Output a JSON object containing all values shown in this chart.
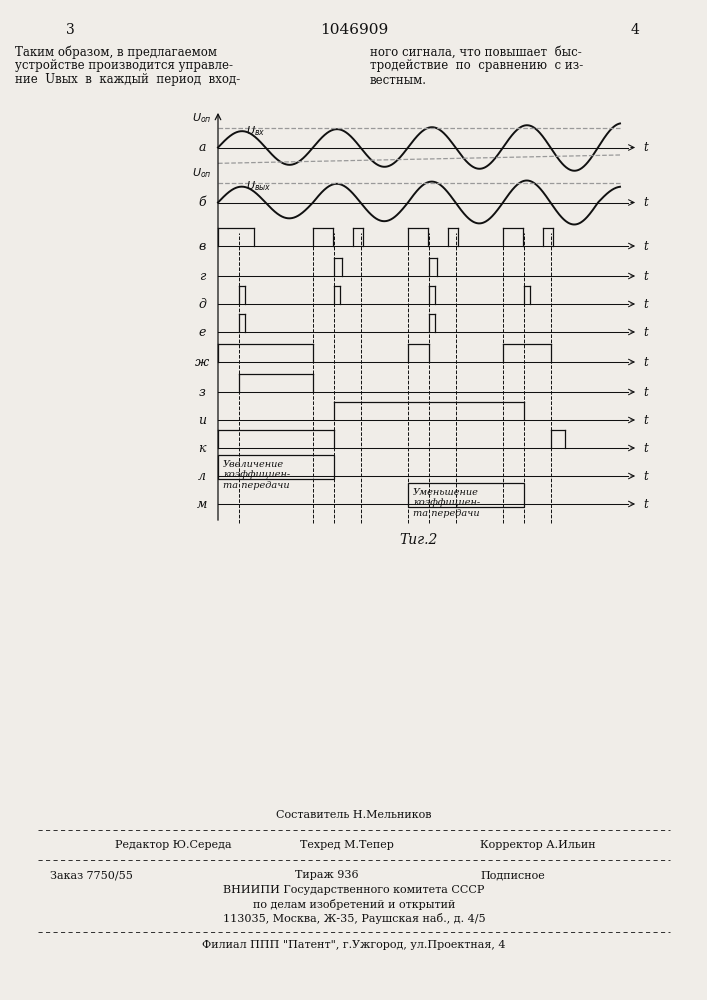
{
  "bg_color": "#f0ede8",
  "black": "#111111",
  "gray": "#999999",
  "page_num_left": "3",
  "page_num_right": "4",
  "page_title": "1046909",
  "header_left_lines": [
    "Таким образом, в предлагаемом",
    "устройстве производится управле-",
    "ние  Uвых  в  каждый  период  вход-"
  ],
  "header_right_lines": [
    "ного сигнала, что повышает  быс-",
    "тродействие  по  сравнению  с из-",
    "вестным."
  ],
  "ch_labels": [
    "а",
    "б",
    "в",
    "г",
    "д",
    "е",
    "ж",
    "з",
    "и",
    "к",
    "л",
    "м"
  ],
  "fig_caption": "Τиг.2",
  "Uvx": "Uвх",
  "Uvyx": "Uвых",
  "Uon": "Uоп",
  "increase_text": "Увеличение\nкоэффициен-\nта передачи",
  "decrease_text": "Уменьшение\nкоэффициен-\nта передачи",
  "footer_line1": "Составитель Н.Мельников",
  "footer_editor": "Редактор Ю.Середа",
  "footer_techred": "Техред М.Тепер",
  "footer_corrector": "Корректор А.Ильин",
  "footer_order": "Заказ 7750/55",
  "footer_edition": "Тираж 936",
  "footer_subtype": "Подписное",
  "footer_org1": "ВНИИПИ Государственного комитета СССР",
  "footer_org2": "по делам изобретений и открытий",
  "footer_addr": "113035, Москва, Ж-35, Раушская наб., д. 4/5",
  "footer_branch": "Филиал ППП \"Патент\", г.Ужгород, ул.Проектная, 4"
}
